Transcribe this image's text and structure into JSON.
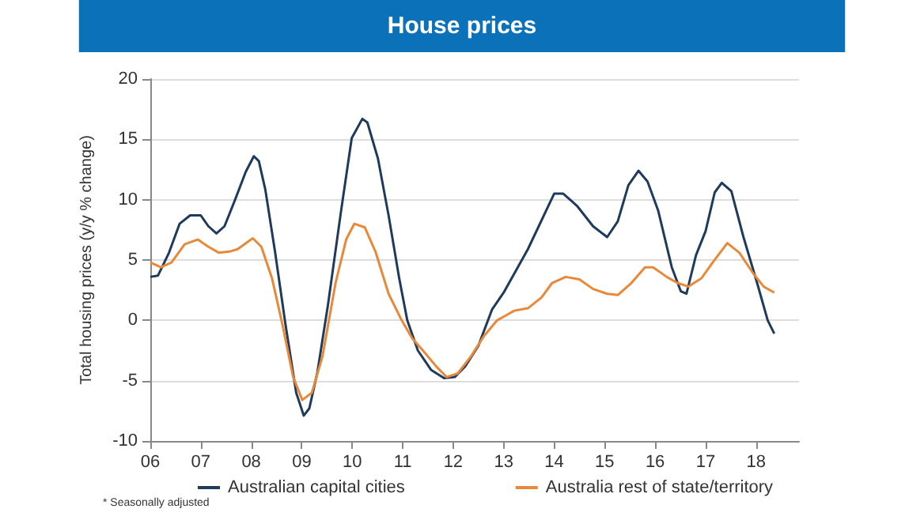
{
  "chart_data": {
    "type": "line",
    "title": "House prices",
    "ylabel": "Total housing prices (y/y % change)",
    "annotations": [
      "* Seasonally adjusted"
    ],
    "xlim": [
      2006,
      2018.85
    ],
    "xticks": [
      {
        "value": 2006,
        "label": "06"
      },
      {
        "value": 2007,
        "label": "07"
      },
      {
        "value": 2008,
        "label": "08"
      },
      {
        "value": 2009,
        "label": "09"
      },
      {
        "value": 2010,
        "label": "10"
      },
      {
        "value": 2011,
        "label": "11"
      },
      {
        "value": 2012,
        "label": "12"
      },
      {
        "value": 2013,
        "label": "13"
      },
      {
        "value": 2014,
        "label": "14"
      },
      {
        "value": 2015,
        "label": "15"
      },
      {
        "value": 2016,
        "label": "16"
      },
      {
        "value": 2017,
        "label": "17"
      },
      {
        "value": 2018,
        "label": "18"
      }
    ],
    "ylim": [
      -10,
      20
    ],
    "yticks": [
      -10,
      -5,
      0,
      5,
      10,
      15,
      20
    ],
    "grid": "y",
    "legend": "bottom",
    "marker": "none",
    "line_style": "solid",
    "series": [
      {
        "name": "Australian capital cities",
        "color": "#1f3b5c",
        "x": [
          2006.0,
          2006.15,
          2006.37,
          2006.58,
          2006.79,
          2007.0,
          2007.15,
          2007.31,
          2007.47,
          2007.68,
          2007.89,
          2008.05,
          2008.15,
          2008.28,
          2008.47,
          2008.68,
          2008.89,
          2009.04,
          2009.15,
          2009.31,
          2009.52,
          2009.78,
          2009.99,
          2010.2,
          2010.3,
          2010.51,
          2010.72,
          2010.93,
          2011.09,
          2011.3,
          2011.56,
          2011.82,
          2012.03,
          2012.24,
          2012.5,
          2012.77,
          2013.0,
          2013.48,
          2014.0,
          2014.18,
          2014.45,
          2014.77,
          2015.05,
          2015.26,
          2015.47,
          2015.67,
          2015.85,
          2016.06,
          2016.33,
          2016.51,
          2016.62,
          2016.81,
          2017.0,
          2017.18,
          2017.32,
          2017.51,
          2017.75,
          2018.02,
          2018.23,
          2018.36
        ],
        "values": [
          3.6,
          3.7,
          5.6,
          8.0,
          8.7,
          8.7,
          7.8,
          7.2,
          7.8,
          10.0,
          12.3,
          13.6,
          13.2,
          10.8,
          5.7,
          -0.4,
          -6.0,
          -7.9,
          -7.3,
          -4.3,
          1.3,
          9.1,
          15.1,
          16.7,
          16.4,
          13.4,
          8.7,
          3.5,
          0,
          -2.5,
          -4.1,
          -4.8,
          -4.7,
          -3.8,
          -2.1,
          0.9,
          2.3,
          5.9,
          10.5,
          10.5,
          9.5,
          7.8,
          6.9,
          8.2,
          11.2,
          12.4,
          11.5,
          9.1,
          4.4,
          2.4,
          2.2,
          5.4,
          7.4,
          10.6,
          11.4,
          10.7,
          6.9,
          3.1,
          0,
          -1.1
        ]
      },
      {
        "name": "Australia rest of state/territory",
        "color": "#e8893a",
        "x": [
          2006.0,
          2006.21,
          2006.42,
          2006.68,
          2006.94,
          2007.15,
          2007.36,
          2007.57,
          2007.73,
          2008.03,
          2008.2,
          2008.41,
          2008.62,
          2008.83,
          2009.01,
          2009.2,
          2009.41,
          2009.67,
          2009.88,
          2010.04,
          2010.25,
          2010.46,
          2010.72,
          2010.98,
          2011.19,
          2011.4,
          2011.66,
          2011.87,
          2012.09,
          2012.35,
          2012.61,
          2012.87,
          2013.0,
          2013.21,
          2013.48,
          2013.75,
          2013.96,
          2014.23,
          2014.5,
          2014.77,
          2015.05,
          2015.26,
          2015.53,
          2015.8,
          2015.96,
          2016.23,
          2016.44,
          2016.66,
          2016.92,
          2017.14,
          2017.43,
          2017.67,
          2017.94,
          2018.15,
          2018.36
        ],
        "values": [
          4.8,
          4.4,
          4.8,
          6.3,
          6.7,
          6.1,
          5.6,
          5.7,
          5.9,
          6.8,
          6.1,
          3.5,
          -0.4,
          -4.7,
          -6.6,
          -6.0,
          -3.0,
          3.1,
          6.7,
          8.0,
          7.7,
          5.7,
          2.2,
          0,
          -1.5,
          -2.5,
          -3.8,
          -4.7,
          -4.4,
          -3.0,
          -1.3,
          0,
          0.3,
          0.8,
          1.0,
          1.9,
          3.1,
          3.6,
          3.4,
          2.6,
          2.2,
          2.1,
          3.1,
          4.4,
          4.4,
          3.6,
          3.1,
          2.8,
          3.5,
          4.8,
          6.4,
          5.6,
          3.9,
          2.8,
          2.3
        ]
      }
    ]
  }
}
